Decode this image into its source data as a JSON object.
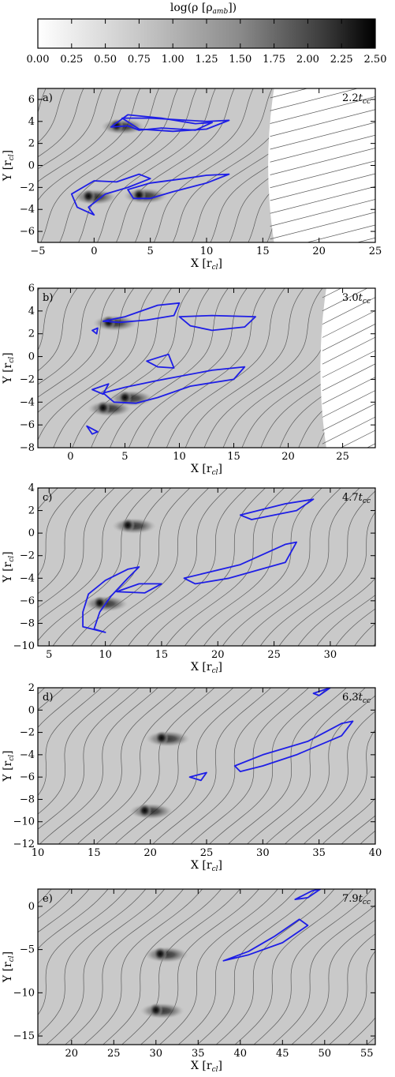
{
  "colorbar": {
    "title": "log(ρ [ρ",
    "title_sub": "amb",
    "title_end": "])",
    "min": 0.0,
    "max": 2.5,
    "ticks": [
      "0.00",
      "0.25",
      "0.50",
      "0.75",
      "1.00",
      "1.25",
      "1.50",
      "1.75",
      "2.00",
      "2.25",
      "2.50"
    ],
    "colors": [
      "#ffffff",
      "#000000"
    ]
  },
  "chart_data": [
    {
      "type": "heatmap",
      "panel": "a)",
      "time_value": "2.2",
      "time_unit": "t",
      "time_sub": "cc",
      "xlabel": "X [r",
      "xlabel_sub": "cl",
      "xlabel_end": "]",
      "ylabel": "Y [r",
      "ylabel_sub": "cl",
      "ylabel_end": "]",
      "xlim": [
        -5,
        25
      ],
      "ylim": [
        -7,
        7
      ],
      "xticks": [
        -5,
        0,
        5,
        10,
        15,
        20,
        25
      ],
      "yticks": [
        -6,
        -4,
        -2,
        0,
        2,
        4,
        6
      ],
      "clumps": [
        {
          "x": 2,
          "y": 3.6,
          "density": 2.4
        },
        {
          "x": -0.5,
          "y": -2.8,
          "density": 2.4
        },
        {
          "x": 4,
          "y": -2.7,
          "density": 2.3
        }
      ],
      "front_x": 16
    },
    {
      "type": "heatmap",
      "panel": "b)",
      "time_value": "3.0",
      "time_unit": "t",
      "time_sub": "cc",
      "xlabel": "X [r",
      "xlabel_sub": "cl",
      "xlabel_end": "]",
      "ylabel": "Y [r",
      "ylabel_sub": "cl",
      "ylabel_end": "]",
      "xlim": [
        -3,
        28
      ],
      "ylim": [
        -8,
        6
      ],
      "xticks": [
        0,
        5,
        10,
        15,
        20,
        25
      ],
      "yticks": [
        -8,
        -6,
        -4,
        -2,
        0,
        2,
        4,
        6
      ],
      "clumps": [
        {
          "x": 3.5,
          "y": 3,
          "density": 2.4
        },
        {
          "x": 5,
          "y": -3.6,
          "density": 2.3
        },
        {
          "x": 3,
          "y": -4.5,
          "density": 2.4
        }
      ],
      "front_x": 23.5
    },
    {
      "type": "heatmap",
      "panel": "c)",
      "time_value": "4.7",
      "time_unit": "t",
      "time_sub": "cc",
      "xlabel": "X [r",
      "xlabel_sub": "cl",
      "xlabel_end": "]",
      "ylabel": "Y [r",
      "ylabel_sub": "cl",
      "ylabel_end": "]",
      "xlim": [
        4,
        34
      ],
      "ylim": [
        -10,
        4
      ],
      "xticks": [
        5,
        10,
        15,
        20,
        25,
        30
      ],
      "yticks": [
        -10,
        -8,
        -6,
        -4,
        -2,
        0,
        2,
        4
      ],
      "clumps": [
        {
          "x": 12,
          "y": 0.7,
          "density": 2.2
        },
        {
          "x": 9.5,
          "y": -6.2,
          "density": 2.4
        }
      ],
      "front_x": null
    },
    {
      "type": "heatmap",
      "panel": "d)",
      "time_value": "6.3",
      "time_unit": "t",
      "time_sub": "cc",
      "xlabel": "X [r",
      "xlabel_sub": "cl",
      "xlabel_end": "]",
      "ylabel": "Y [r",
      "ylabel_sub": "cl",
      "ylabel_end": "]",
      "xlim": [
        10,
        40
      ],
      "ylim": [
        -12,
        2
      ],
      "xticks": [
        10,
        15,
        20,
        25,
        30,
        35,
        40
      ],
      "yticks": [
        -12,
        -10,
        -8,
        -6,
        -4,
        -2,
        0,
        2
      ],
      "clumps": [
        {
          "x": 21,
          "y": -2.5,
          "density": 2.1
        },
        {
          "x": 19.5,
          "y": -9,
          "density": 2.3
        }
      ],
      "front_x": null
    },
    {
      "type": "heatmap",
      "panel": "e)",
      "time_value": "7.9",
      "time_unit": "t",
      "time_sub": "cc",
      "xlabel": "X [r",
      "xlabel_sub": "cl",
      "xlabel_end": "]",
      "ylabel": "Y [r",
      "ylabel_sub": "cl",
      "ylabel_end": "]",
      "xlim": [
        16,
        56
      ],
      "ylim": [
        -16,
        2
      ],
      "xticks": [
        20,
        25,
        30,
        35,
        40,
        45,
        50,
        55
      ],
      "yticks": [
        -15,
        -10,
        -5,
        0
      ],
      "clumps": [
        {
          "x": 30.5,
          "y": -5.5,
          "density": 2.0
        },
        {
          "x": 30,
          "y": -12,
          "density": 2.2
        }
      ],
      "front_x": null
    }
  ]
}
